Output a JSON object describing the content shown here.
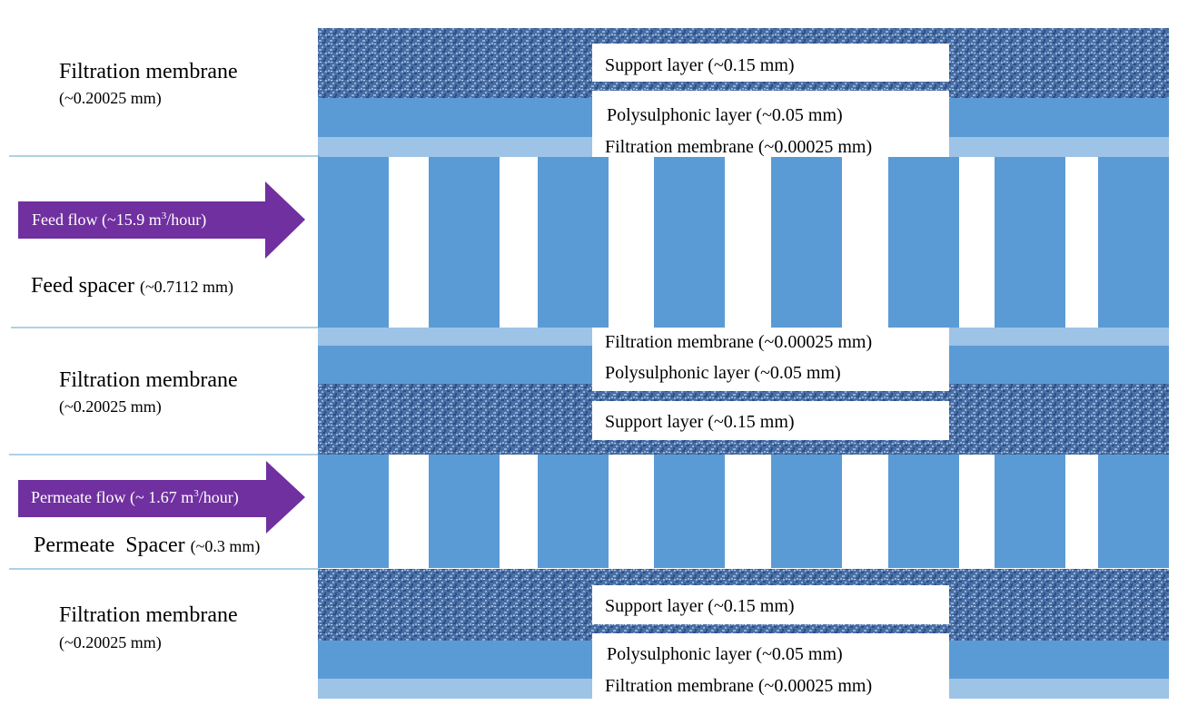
{
  "membrane_top": {
    "title": "Filtration membrane",
    "thickness": "(~0.20025 mm)",
    "support": "Support layer (~0.15 mm)",
    "polysulphonic": "Polysulphonic layer (~0.05 mm)",
    "filtration": "Filtration membrane (~0.00025 mm)"
  },
  "feed": {
    "arrow_label_pre": "Feed flow (~15.9 m",
    "arrow_label_sup": "3",
    "arrow_label_post": "/hour)",
    "spacer_name": "Feed spacer",
    "spacer_thickness": "(~0.7112 mm)"
  },
  "membrane_mid": {
    "title": "Filtration membrane",
    "thickness": "(~0.20025 mm)",
    "filtration": "Filtration membrane (~0.00025 mm)",
    "polysulphonic": "Polysulphonic layer (~0.05 mm)",
    "support": "Support layer (~0.15 mm)"
  },
  "permeate": {
    "arrow_label_pre": "Permeate flow (~ 1.67 m",
    "arrow_label_sup": "3",
    "arrow_label_post": "/hour)",
    "spacer_name": "Permeate  Spacer",
    "spacer_thickness": "(~0.3 mm)"
  },
  "membrane_bot": {
    "title": "Filtration membrane",
    "thickness": "(~0.20025 mm)",
    "support": "Support layer (~0.15 mm)",
    "polysulphonic": "Polysulphonic layer (~0.05 mm)",
    "filtration": "Filtration membrane (~0.00025 mm)"
  },
  "colors": {
    "support_base": "#4a6fa5",
    "support_dark": "#2c4f86",
    "support_light": "#8fb0d8",
    "polysulphonic": "#5b9bd5",
    "filtration": "#9dc3e6",
    "spacer_bar": "#5b9bd5",
    "arrow": "#7030a0",
    "divider": "#5fa0c8"
  }
}
